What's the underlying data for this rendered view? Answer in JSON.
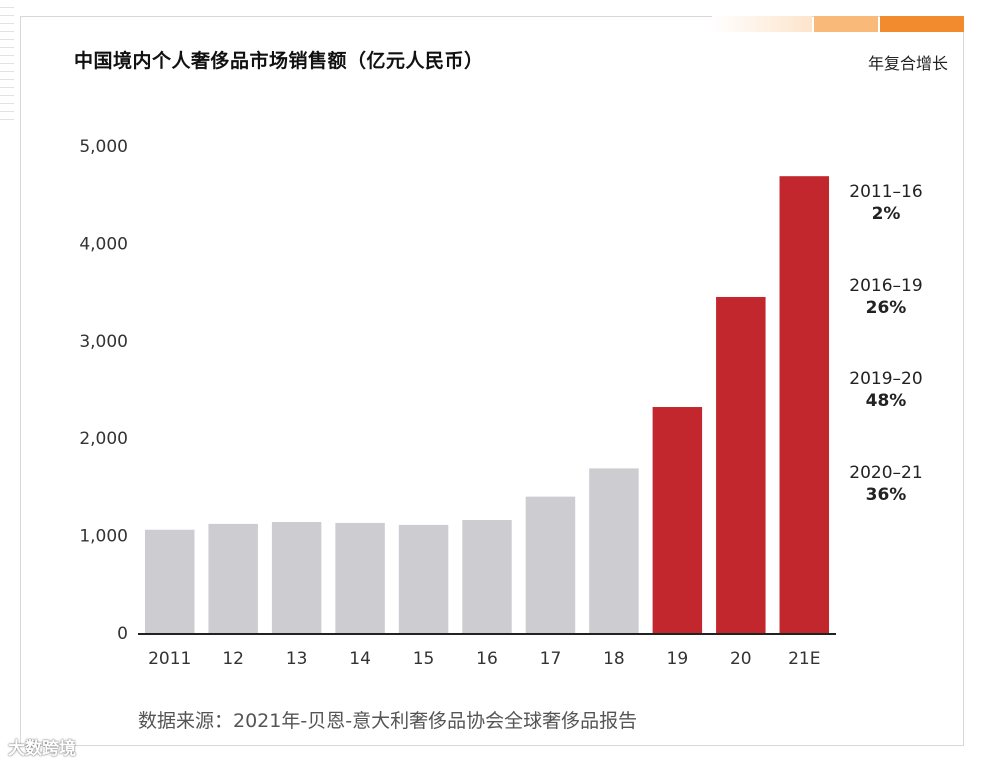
{
  "chart_data": {
    "type": "bar",
    "title": "中国境内个人奢侈品市场销售额（亿元人民币）",
    "categories": [
      "2011",
      "12",
      "13",
      "14",
      "15",
      "16",
      "17",
      "18",
      "19",
      "20",
      "21E"
    ],
    "values": [
      1060,
      1120,
      1140,
      1130,
      1110,
      1160,
      1400,
      1690,
      2320,
      3450,
      4690
    ],
    "highlight": [
      false,
      false,
      false,
      false,
      false,
      false,
      false,
      false,
      true,
      true,
      true
    ],
    "ylim": [
      0,
      5000
    ],
    "yticks": [
      0,
      1000,
      2000,
      3000,
      4000,
      5000
    ],
    "ytick_labels": [
      "0",
      "1,000",
      "2,000",
      "3,000",
      "4,000",
      "5,000"
    ],
    "xlabel": "",
    "ylabel": "",
    "grid": false,
    "colors": {
      "base": "#cdccd1",
      "highlight": "#c1272d"
    }
  },
  "cagr": {
    "title": "年复合增长",
    "items": [
      {
        "period": "2011–16",
        "rate": "2%"
      },
      {
        "period": "2016–19",
        "rate": "26%"
      },
      {
        "period": "2019–20",
        "rate": "48%"
      },
      {
        "period": "2020–21",
        "rate": "36%"
      }
    ]
  },
  "source": "数据来源：2021年-贝恩-意大利奢侈品协会全球奢侈品报告",
  "watermark": "大数跨境",
  "accent_colors": [
    "#fde4cc",
    "#f9b978",
    "#f28b2d"
  ]
}
